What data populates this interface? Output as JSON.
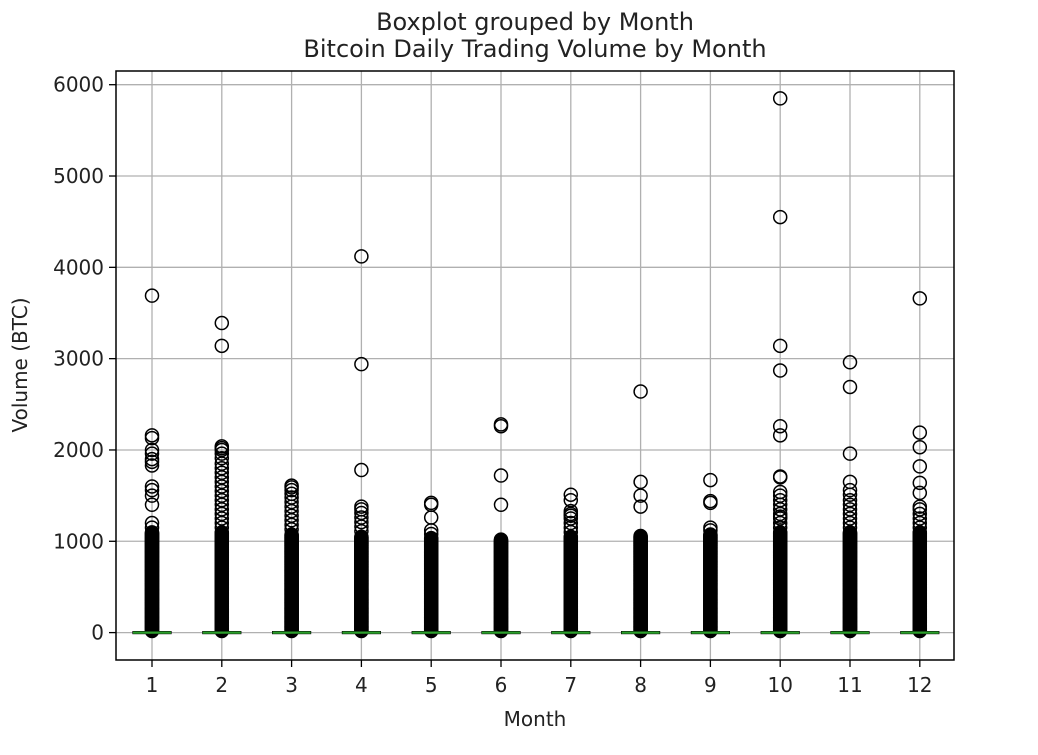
{
  "chart_data": {
    "type": "box",
    "suptitle": "Boxplot grouped by Month",
    "title": "Bitcoin Daily Trading Volume by Month",
    "xlabel": "Month",
    "ylabel": "Volume (BTC)",
    "ylim": [
      -300,
      6150
    ],
    "yticks": [
      0,
      1000,
      2000,
      3000,
      4000,
      5000,
      6000
    ],
    "grid": true,
    "categories": [
      "1",
      "2",
      "3",
      "4",
      "5",
      "6",
      "7",
      "8",
      "9",
      "10",
      "11",
      "12"
    ],
    "boxes": [
      {
        "category": "1",
        "median": 0,
        "whisker_low": 0,
        "whisker_high": 0,
        "outliers_top": [
          3690,
          2160,
          2130,
          2000,
          1960,
          1900,
          1870,
          1830,
          1600,
          1560,
          1500,
          1400,
          1200,
          1150
        ],
        "outlier_fill_to": 1100
      },
      {
        "category": "2",
        "median": 0,
        "whisker_low": 0,
        "whisker_high": 0,
        "outliers_top": [
          3390,
          3140,
          2040,
          2020,
          2000,
          1960,
          1910,
          1850,
          1800,
          1750,
          1700,
          1650,
          1600,
          1550,
          1500,
          1450,
          1400,
          1350,
          1300,
          1250,
          1200,
          1150
        ],
        "outlier_fill_to": 1100
      },
      {
        "category": "3",
        "median": 0,
        "whisker_low": 0,
        "whisker_high": 0,
        "outliers_top": [
          1610,
          1590,
          1560,
          1520,
          1480,
          1430,
          1380,
          1330,
          1280,
          1230,
          1180,
          1130
        ],
        "outlier_fill_to": 1080
      },
      {
        "category": "4",
        "median": 0,
        "whisker_low": 0,
        "whisker_high": 0,
        "outliers_top": [
          4120,
          2940,
          1780,
          1380,
          1350,
          1310,
          1260,
          1210,
          1160,
          1110
        ],
        "outlier_fill_to": 1050
      },
      {
        "category": "5",
        "median": 0,
        "whisker_low": 0,
        "whisker_high": 0,
        "outliers_top": [
          1420,
          1400,
          1260,
          1120,
          1080
        ],
        "outlier_fill_to": 1040
      },
      {
        "category": "6",
        "median": 0,
        "whisker_low": 0,
        "whisker_high": 0,
        "outliers_top": [
          2280,
          2260,
          1720,
          1400
        ],
        "outlier_fill_to": 1020
      },
      {
        "category": "7",
        "median": 0,
        "whisker_low": 0,
        "whisker_high": 0,
        "outliers_top": [
          1510,
          1450,
          1330,
          1300,
          1280,
          1250,
          1200,
          1150,
          1100
        ],
        "outlier_fill_to": 1050
      },
      {
        "category": "8",
        "median": 0,
        "whisker_low": 0,
        "whisker_high": 0,
        "outliers_top": [
          2640,
          1650,
          1500,
          1380
        ],
        "outlier_fill_to": 1060
      },
      {
        "category": "9",
        "median": 0,
        "whisker_low": 0,
        "whisker_high": 0,
        "outliers_top": [
          1670,
          1440,
          1420,
          1150,
          1120
        ],
        "outlier_fill_to": 1080
      },
      {
        "category": "10",
        "median": 0,
        "whisker_low": 0,
        "whisker_high": 0,
        "outliers_top": [
          5850,
          4550,
          3140,
          2870,
          2260,
          2160,
          1710,
          1700,
          1540,
          1500,
          1450,
          1400,
          1350,
          1300,
          1270,
          1250,
          1200,
          1150
        ],
        "outlier_fill_to": 1100
      },
      {
        "category": "11",
        "median": 0,
        "whisker_low": 0,
        "whisker_high": 0,
        "outliers_top": [
          2960,
          2690,
          1960,
          1650,
          1560,
          1510,
          1450,
          1400,
          1350,
          1300,
          1250,
          1200,
          1150
        ],
        "outlier_fill_to": 1100
      },
      {
        "category": "12",
        "median": 0,
        "whisker_low": 0,
        "whisker_high": 0,
        "outliers_top": [
          3660,
          2190,
          2030,
          1820,
          1640,
          1530,
          1380,
          1350,
          1300,
          1250,
          1200,
          1150
        ],
        "outlier_fill_to": 1100
      }
    ]
  },
  "colors": {
    "median": "#2ca02c",
    "grid": "#b0b0b0",
    "outlier_edge": "#000000",
    "axes": "#000000",
    "text": "#222222"
  }
}
